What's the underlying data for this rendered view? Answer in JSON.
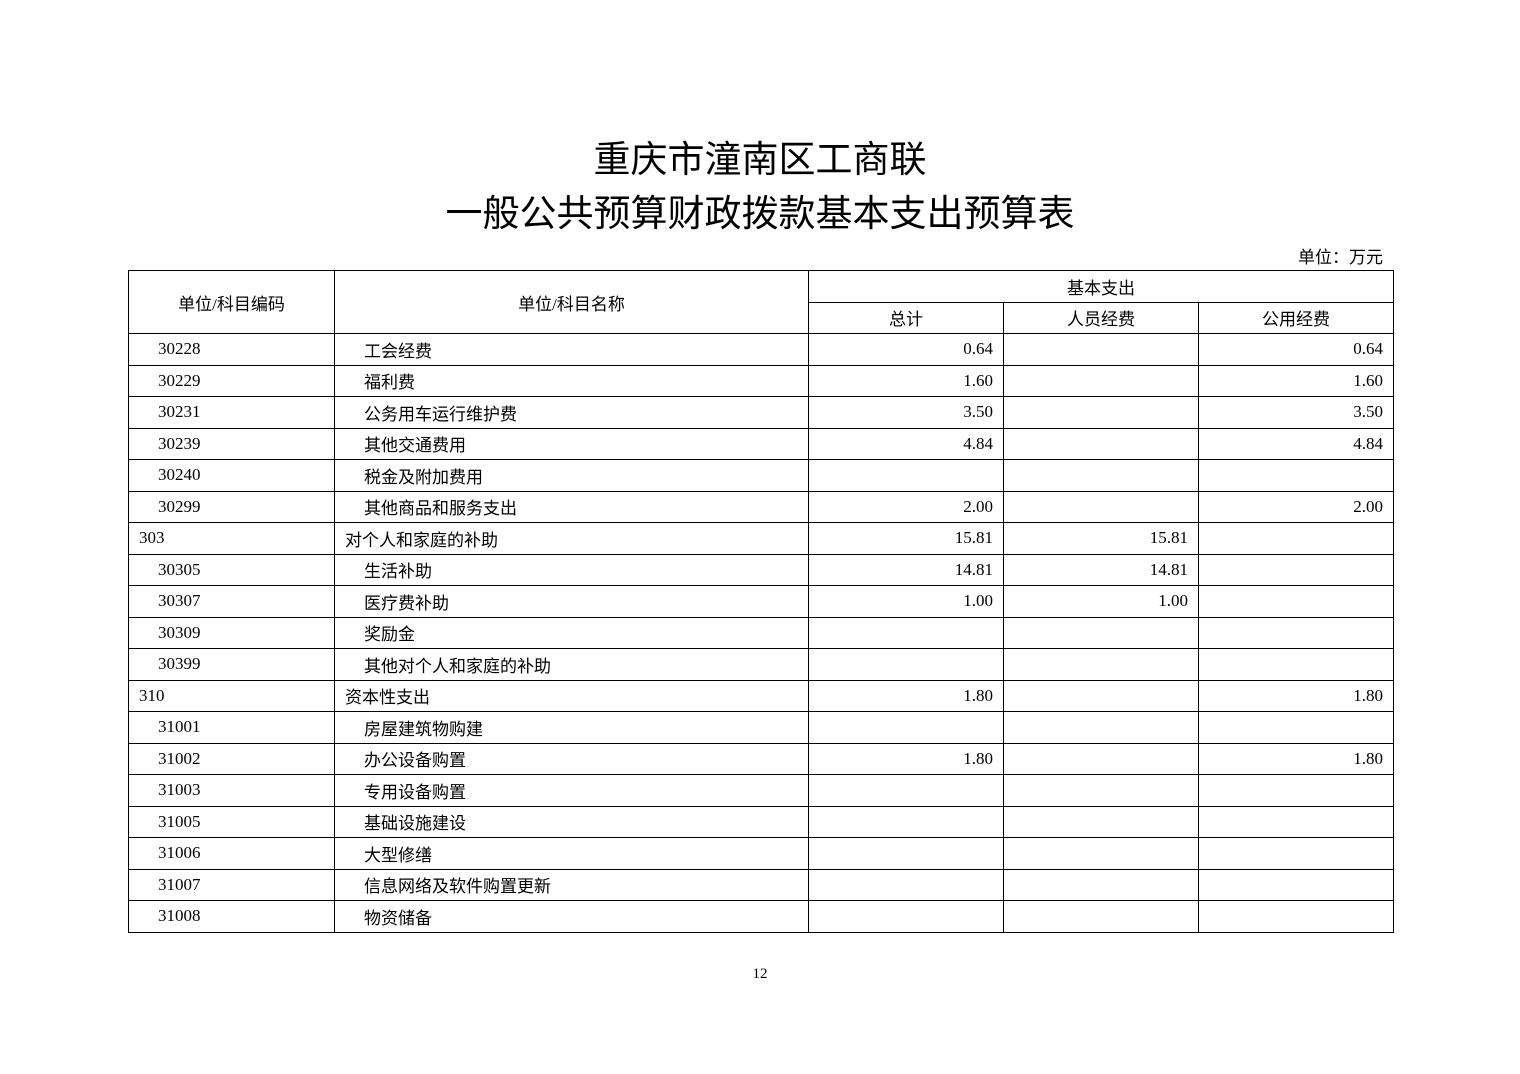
{
  "title_line1": "重庆市潼南区工商联",
  "title_line2": "一般公共预算财政拨款基本支出预算表",
  "unit": "单位：万元",
  "headers": {
    "code": "单位/科目编码",
    "name": "单位/科目名称",
    "group": "基本支出",
    "total": "总计",
    "personnel": "人员经费",
    "public": "公用经费"
  },
  "rows": [
    {
      "code": "30228",
      "name": "工会经费",
      "total": "0.64",
      "personnel": "",
      "public": "0.64",
      "level": 2
    },
    {
      "code": "30229",
      "name": "福利费",
      "total": "1.60",
      "personnel": "",
      "public": "1.60",
      "level": 2
    },
    {
      "code": "30231",
      "name": "公务用车运行维护费",
      "total": "3.50",
      "personnel": "",
      "public": "3.50",
      "level": 2
    },
    {
      "code": "30239",
      "name": "其他交通费用",
      "total": "4.84",
      "personnel": "",
      "public": "4.84",
      "level": 2
    },
    {
      "code": "30240",
      "name": "税金及附加费用",
      "total": "",
      "personnel": "",
      "public": "",
      "level": 2
    },
    {
      "code": "30299",
      "name": "其他商品和服务支出",
      "total": "2.00",
      "personnel": "",
      "public": "2.00",
      "level": 2
    },
    {
      "code": "303",
      "name": "对个人和家庭的补助",
      "total": "15.81",
      "personnel": "15.81",
      "public": "",
      "level": 1
    },
    {
      "code": "30305",
      "name": "生活补助",
      "total": "14.81",
      "personnel": "14.81",
      "public": "",
      "level": 2
    },
    {
      "code": "30307",
      "name": "医疗费补助",
      "total": "1.00",
      "personnel": "1.00",
      "public": "",
      "level": 2
    },
    {
      "code": "30309",
      "name": "奖励金",
      "total": "",
      "personnel": "",
      "public": "",
      "level": 2
    },
    {
      "code": "30399",
      "name": "其他对个人和家庭的补助",
      "total": "",
      "personnel": "",
      "public": "",
      "level": 2
    },
    {
      "code": "310",
      "name": "资本性支出",
      "total": "1.80",
      "personnel": "",
      "public": "1.80",
      "level": 1
    },
    {
      "code": "31001",
      "name": "房屋建筑物购建",
      "total": "",
      "personnel": "",
      "public": "",
      "level": 2
    },
    {
      "code": "31002",
      "name": "办公设备购置",
      "total": "1.80",
      "personnel": "",
      "public": "1.80",
      "level": 2
    },
    {
      "code": "31003",
      "name": "专用设备购置",
      "total": "",
      "personnel": "",
      "public": "",
      "level": 2
    },
    {
      "code": "31005",
      "name": "基础设施建设",
      "total": "",
      "personnel": "",
      "public": "",
      "level": 2
    },
    {
      "code": "31006",
      "name": "大型修缮",
      "total": "",
      "personnel": "",
      "public": "",
      "level": 2
    },
    {
      "code": "31007",
      "name": "信息网络及软件购置更新",
      "total": "",
      "personnel": "",
      "public": "",
      "level": 2
    },
    {
      "code": "31008",
      "name": "物资储备",
      "total": "",
      "personnel": "",
      "public": "",
      "level": 2
    }
  ],
  "page_number": "12"
}
